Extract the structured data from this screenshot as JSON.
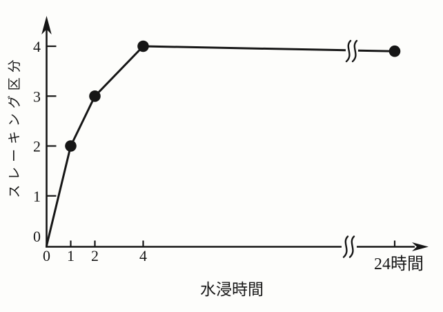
{
  "chart_data": {
    "type": "line",
    "title": "",
    "xlabel": "水浸時間",
    "ylabel": "スレーキング区分",
    "x_ticks": [
      {
        "label": "0",
        "hours": 0
      },
      {
        "label": "1",
        "hours": 1
      },
      {
        "label": "2",
        "hours": 2
      },
      {
        "label": "4",
        "hours": 4
      },
      {
        "label": "24時間",
        "hours": 24
      }
    ],
    "y_ticks": [
      0,
      1,
      2,
      3,
      4
    ],
    "ylim": [
      0,
      4.5
    ],
    "x_axis_break_between": [
      4,
      24
    ],
    "grid": "off",
    "legend": "none",
    "marker": "filled-circle",
    "series": [
      {
        "name": "スレーキング区分",
        "points": [
          {
            "hours": 0,
            "value": 0
          },
          {
            "hours": 1,
            "value": 2
          },
          {
            "hours": 2,
            "value": 3
          },
          {
            "hours": 4,
            "value": 4
          },
          {
            "hours": 24,
            "value": 3.9
          }
        ]
      }
    ],
    "ink_color": "#161616",
    "background_color": "#fdfdfb"
  }
}
